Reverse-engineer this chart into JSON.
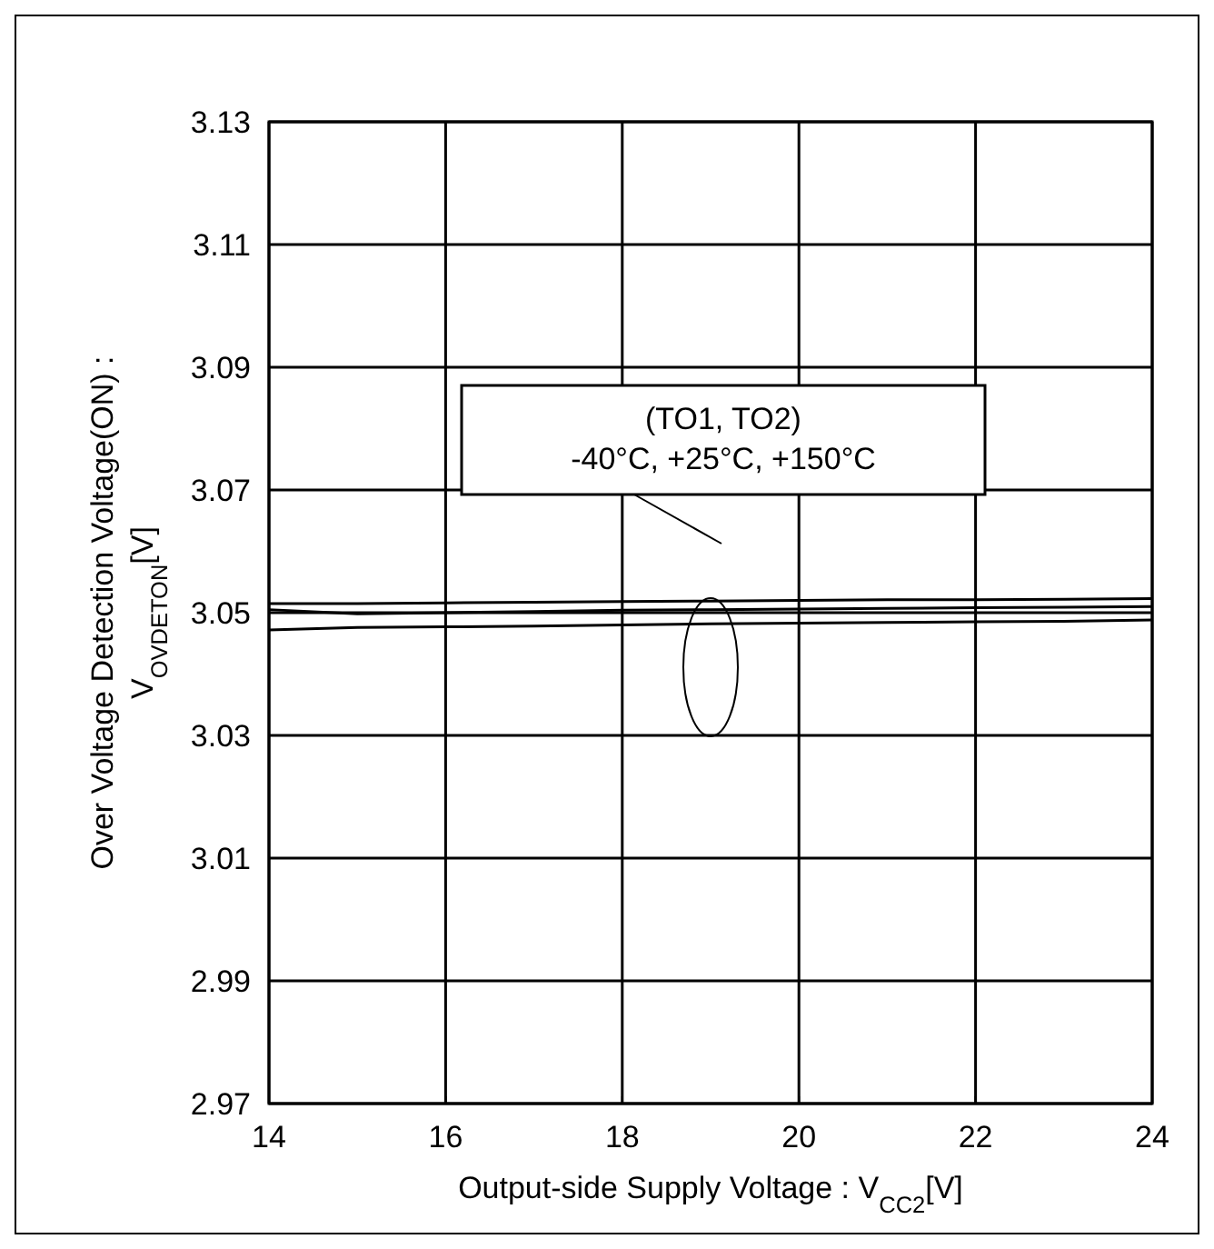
{
  "chart_data": {
    "type": "line",
    "xlabel": "Output-side Supply Voltage : V$_{CC2}$[V]",
    "ylabel": "Over Voltage Detection Voltage(ON) :\nV$_{OVDETON}$[V]",
    "x": [
      14,
      15,
      16,
      17,
      18,
      19,
      20,
      21,
      22,
      23,
      24
    ],
    "series": [
      {
        "color": "#000000",
        "values": [
          3.0515,
          3.0515,
          3.0516,
          3.0517,
          3.0518,
          3.0519,
          3.052,
          3.0521,
          3.0521,
          3.0522,
          3.0523
        ]
      },
      {
        "color": "#000000",
        "values": [
          3.0505,
          3.0498,
          3.05,
          3.0502,
          3.0504,
          3.0505,
          3.0506,
          3.0507,
          3.0508,
          3.0509,
          3.051
        ]
      },
      {
        "color": "#000000",
        "values": [
          3.0472,
          3.0476,
          3.0477,
          3.0478,
          3.048,
          3.0482,
          3.0483,
          3.0484,
          3.0485,
          3.0486,
          3.0488
        ]
      }
    ],
    "xlim": [
      14,
      24
    ],
    "xticks": [
      14,
      16,
      18,
      20,
      22,
      24
    ],
    "ylim": [
      2.97,
      3.13
    ],
    "yticks": [
      2.97,
      2.99,
      3.01,
      3.03,
      3.05,
      3.07,
      3.09,
      3.11,
      3.13
    ],
    "grid": true,
    "marker": "none",
    "line_style": "solid",
    "annotations": [
      "(TO1, TO2)\n-40°C, +25°C, +150°C"
    ]
  }
}
